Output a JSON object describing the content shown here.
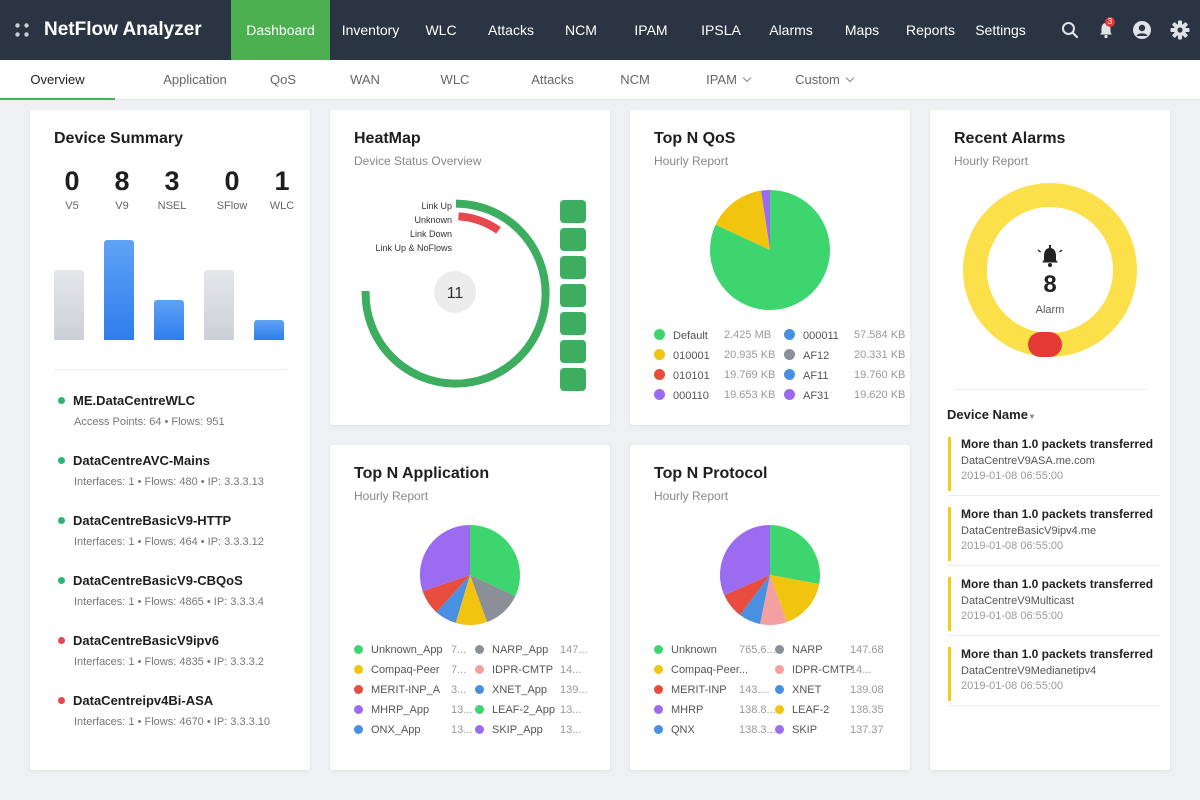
{
  "app": {
    "title": "NetFlow Analyzer"
  },
  "nav": {
    "items": [
      "Dashboard",
      "Inventory",
      "WLC",
      "Attacks",
      "NCM",
      "IPAM",
      "IPSLA",
      "Alarms",
      "Maps",
      "Reports",
      "Settings"
    ],
    "active": "Dashboard",
    "notification_count": "3",
    "icons": [
      "app-grid-icon",
      "search-icon",
      "bell-icon",
      "user-icon",
      "gear-icon"
    ]
  },
  "subnav": {
    "items": [
      "Overview",
      "Application",
      "QoS",
      "WAN",
      "WLC",
      "Attacks",
      "NCM",
      "IPAM",
      "Custom"
    ],
    "active": "Overview"
  },
  "colors": {
    "accent": "#4caf50",
    "alarm_ring": "#fbe04a",
    "critical": "#e53935"
  },
  "device_summary": {
    "title": "Device Summary",
    "counts": [
      {
        "value": "0",
        "label": "V5"
      },
      {
        "value": "8",
        "label": "V9"
      },
      {
        "value": "3",
        "label": "NSEL"
      },
      {
        "value": "0",
        "label": "SFlow"
      },
      {
        "value": "1",
        "label": "WLC"
      }
    ],
    "devices": [
      {
        "name": "ME.DataCentreWLC",
        "meta": "Access Points: 64 • Flows: 951",
        "status": "green"
      },
      {
        "name": "DataCentreAVC-Mains",
        "meta": "Interfaces: 1 • Flows: 480 • IP: 3.3.3.13",
        "status": "green"
      },
      {
        "name": "DataCentreBasicV9-HTTP",
        "meta": "Interfaces: 1 • Flows: 464 • IP: 3.3.3.12",
        "status": "green"
      },
      {
        "name": "DataCentreBasicV9-CBQoS",
        "meta": "Interfaces: 1 • Flows: 4865 • IP: 3.3.3.4",
        "status": "green"
      },
      {
        "name": "DataCentreBasicV9ipv6",
        "meta": "Interfaces: 1 • Flows: 4835 • IP: 3.3.3.2",
        "status": "red"
      },
      {
        "name": "DataCentreipv4Bi-ASA",
        "meta": "Interfaces: 1 • Flows: 4670 • IP: 3.3.3.10",
        "status": "red"
      }
    ]
  },
  "heatmap": {
    "title": "HeatMap",
    "subtitle": "Device Status Overview",
    "center_value": "11",
    "legend": [
      "Link Up",
      "Unknown",
      "Link Down",
      "Link Up & NoFlows"
    ]
  },
  "top_qos": {
    "title": "Top N QoS",
    "subtitle": "Hourly Report",
    "legend": [
      {
        "name": "Default",
        "value": "2.425 MB",
        "color": "#3dd66e"
      },
      {
        "name": "000011",
        "value": "57.584 KB",
        "color": "#4a90e2"
      },
      {
        "name": "010001",
        "value": "20.935 KB",
        "color": "#f1c40f"
      },
      {
        "name": "AF12",
        "value": "20.331 KB",
        "color": "#8a8f98"
      },
      {
        "name": "010101",
        "value": "19.769 KB",
        "color": "#e74c3c"
      },
      {
        "name": "AF11",
        "value": "19.760 KB",
        "color": "#4a90e2"
      },
      {
        "name": "000110",
        "value": "19.653 KB",
        "color": "#9b6cf0"
      },
      {
        "name": "AF31",
        "value": "19.620 KB",
        "color": "#9b6cf0"
      }
    ]
  },
  "top_app": {
    "title": "Top N Application",
    "subtitle": "Hourly Report",
    "legend": [
      {
        "name": "Unknown_App",
        "value": "7...",
        "color": "#3dd66e"
      },
      {
        "name": "NARP_App",
        "value": "147...",
        "color": "#8a8f98"
      },
      {
        "name": "Compaq-Peer",
        "value": "7...",
        "color": "#f1c40f"
      },
      {
        "name": "IDPR-CMTP",
        "value": "14...",
        "color": "#f4a0a0"
      },
      {
        "name": "MERIT-INP_A",
        "value": "3...",
        "color": "#e74c3c"
      },
      {
        "name": "XNET_App",
        "value": "139...",
        "color": "#4a90e2"
      },
      {
        "name": "MHRP_App",
        "value": "13...",
        "color": "#9b6cf0"
      },
      {
        "name": "LEAF-2_App",
        "value": "13...",
        "color": "#3dd66e"
      },
      {
        "name": "ONX_App",
        "value": "13...",
        "color": "#4a90e2"
      },
      {
        "name": "SKIP_App",
        "value": "13...",
        "color": "#9b6cf0"
      }
    ]
  },
  "top_protocol": {
    "title": "Top N Protocol",
    "subtitle": "Hourly Report",
    "legend": [
      {
        "name": "Unknown",
        "value": "765.6...",
        "color": "#3dd66e"
      },
      {
        "name": "NARP",
        "value": "147.68",
        "color": "#8a8f98"
      },
      {
        "name": "Compaq-Peer...",
        "value": "",
        "color": "#f1c40f"
      },
      {
        "name": "IDPR-CMTP",
        "value": "14...",
        "color": "#f4a0a0"
      },
      {
        "name": "MERIT-INP",
        "value": "143....",
        "color": "#e74c3c"
      },
      {
        "name": "XNET",
        "value": "139.08",
        "color": "#4a90e2"
      },
      {
        "name": "MHRP",
        "value": "138.8...",
        "color": "#9b6cf0"
      },
      {
        "name": "LEAF-2",
        "value": "138.35",
        "color": "#f1c40f"
      },
      {
        "name": "QNX",
        "value": "138.3...",
        "color": "#4a90e2"
      },
      {
        "name": "SKIP",
        "value": "137.37",
        "color": "#9b6cf0"
      }
    ]
  },
  "recent_alarms": {
    "title": "Recent Alarms",
    "subtitle": "Hourly Report",
    "count": "8",
    "count_label": "Alarm",
    "column": "Device Name",
    "items": [
      {
        "title": "More than 1.0 packets transferred",
        "host": "DataCentreV9ASA.me.com",
        "time": "2019-01-08 06:55:00"
      },
      {
        "title": "More than 1.0 packets transferred",
        "host": "DataCentreBasicV9ipv4.me",
        "time": "2019-01-08 06:55:00"
      },
      {
        "title": "More than 1.0 packets transferred",
        "host": "DataCentreV9Multicast",
        "time": "2019-01-08 06:55:00"
      },
      {
        "title": "More than 1.0 packets transferred",
        "host": "DataCentreV9Medianetipv4",
        "time": "2019-01-08 06:55:00"
      }
    ]
  }
}
